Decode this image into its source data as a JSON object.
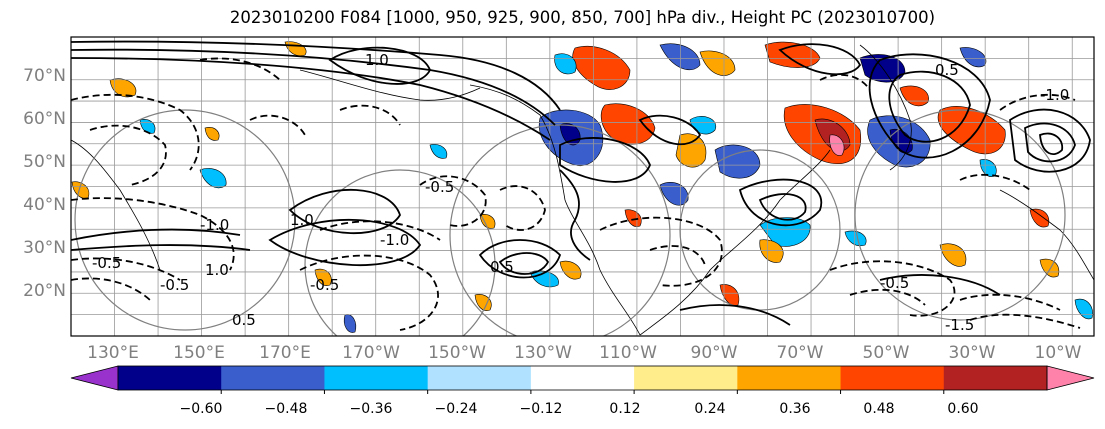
{
  "title": "2023010200 F084 [1000, 950, 925, 900, 850, 700] hPa div., Height PC (2023010700)",
  "map": {
    "lon_range": [
      120,
      355
    ],
    "lat_range": [
      10,
      80
    ],
    "lat_labels": [
      "70°N",
      "60°N",
      "50°N",
      "40°N",
      "30°N",
      "20°N"
    ],
    "lat_values": [
      70,
      60,
      50,
      40,
      30,
      20
    ],
    "lon_labels": [
      "130°E",
      "150°E",
      "170°E",
      "170°W",
      "150°W",
      "130°W",
      "110°W",
      "90°W",
      "70°W",
      "50°W",
      "30°W",
      "10°W"
    ],
    "lon_values": [
      130,
      150,
      170,
      190,
      210,
      230,
      250,
      270,
      290,
      310,
      330,
      350
    ],
    "grid_color": "#999999",
    "label_color": "#7f7f7f",
    "contour_labels": [
      "-0.5",
      "-0.5",
      "-1.0",
      "-1.0",
      "1.0",
      "1.0",
      "-0.5",
      "1.0",
      "0.5",
      "0.5",
      "-0.5",
      "-1.0",
      "-1.5",
      "0.5",
      "-0.5"
    ]
  },
  "colorbar": {
    "tick_labels": [
      "−0.60",
      "−0.48",
      "−0.36",
      "−0.24",
      "−0.12",
      "0.12",
      "0.24",
      "0.36",
      "0.48",
      "0.60"
    ],
    "ticks": [
      -0.6,
      -0.48,
      -0.36,
      -0.24,
      -0.12,
      0.12,
      0.24,
      0.36,
      0.48,
      0.6
    ],
    "colors": [
      "#9932cc",
      "#00008b",
      "#3a5fcd",
      "#00bfff",
      "#b0e2ff",
      "#ffffff",
      "#ffec8b",
      "#ffa500",
      "#ff4500",
      "#b22222",
      "#ff82ab"
    ]
  }
}
